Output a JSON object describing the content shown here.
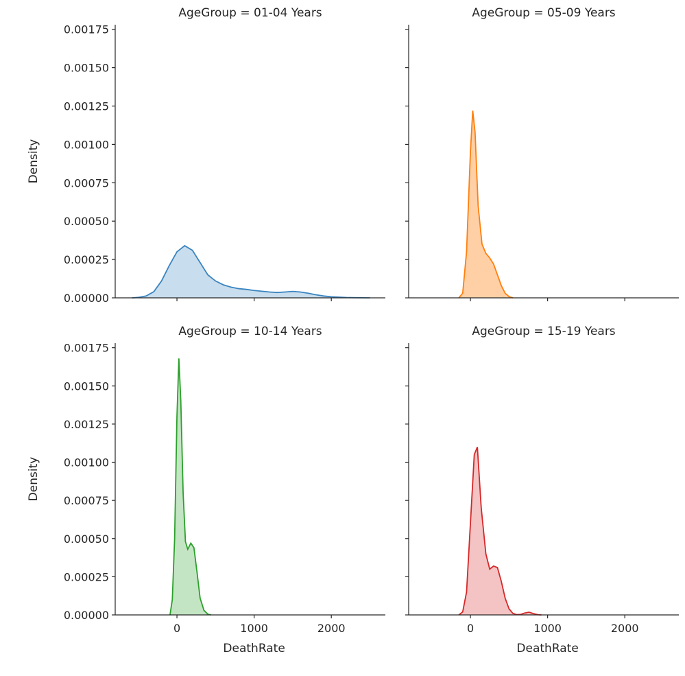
{
  "chart_data": {
    "type": "area",
    "kind": "kde-facet-grid",
    "layout": "2x2",
    "xlabel": "DeathRate",
    "ylabel": "Density",
    "xlim": [
      -800,
      2700
    ],
    "ylim": [
      0,
      0.00178
    ],
    "x_ticks": [
      0,
      1000,
      2000
    ],
    "x_tick_labels": [
      "0",
      "1000",
      "2000"
    ],
    "y_ticks": [
      0,
      0.00025,
      0.0005,
      0.00075,
      0.001,
      0.00125,
      0.0015,
      0.00175
    ],
    "y_tick_labels": [
      "0.00000",
      "0.00025",
      "0.00050",
      "0.00075",
      "0.00100",
      "0.00125",
      "0.00150",
      "0.00175"
    ],
    "grid": false,
    "panels": [
      {
        "title": "AgeGroup = 01-04 Years",
        "color": "#3a84c0",
        "fill": "#3a84c0",
        "points": [
          [
            -580,
            0
          ],
          [
            -500,
            3e-06
          ],
          [
            -400,
            1.2e-05
          ],
          [
            -300,
            4e-05
          ],
          [
            -200,
            0.00011
          ],
          [
            -100,
            0.00021
          ],
          [
            0,
            0.0003
          ],
          [
            100,
            0.00034
          ],
          [
            200,
            0.00031
          ],
          [
            300,
            0.00023
          ],
          [
            400,
            0.00015
          ],
          [
            500,
            0.00011
          ],
          [
            600,
            8.5e-05
          ],
          [
            700,
            7e-05
          ],
          [
            800,
            6e-05
          ],
          [
            900,
            5.5e-05
          ],
          [
            1000,
            4.8e-05
          ],
          [
            1100,
            4.3e-05
          ],
          [
            1200,
            3.8e-05
          ],
          [
            1300,
            3.5e-05
          ],
          [
            1400,
            3.8e-05
          ],
          [
            1500,
            4.2e-05
          ],
          [
            1600,
            3.8e-05
          ],
          [
            1700,
            3e-05
          ],
          [
            1800,
            2e-05
          ],
          [
            1900,
            1.2e-05
          ],
          [
            2000,
            7e-06
          ],
          [
            2200,
            2e-06
          ],
          [
            2400,
            5e-07
          ],
          [
            2500,
            0
          ]
        ]
      },
      {
        "title": "AgeGroup = 05-09 Years",
        "color": "#ff7f0e",
        "fill": "#ffb06a",
        "points": [
          [
            -150,
            0
          ],
          [
            -100,
            3e-05
          ],
          [
            -50,
            0.0003
          ],
          [
            0,
            0.00095
          ],
          [
            30,
            0.00122
          ],
          [
            60,
            0.00108
          ],
          [
            100,
            0.0006
          ],
          [
            150,
            0.00035
          ],
          [
            200,
            0.00029
          ],
          [
            250,
            0.00026
          ],
          [
            300,
            0.00022
          ],
          [
            350,
            0.00015
          ],
          [
            400,
            8e-05
          ],
          [
            450,
            3e-05
          ],
          [
            500,
            8e-06
          ],
          [
            550,
            0
          ]
        ]
      },
      {
        "title": "AgeGroup = 10-14 Years",
        "color": "#2ca02c",
        "fill": "#2ca02c",
        "points": [
          [
            -90,
            0
          ],
          [
            -60,
            0.0001
          ],
          [
            -30,
            0.0005
          ],
          [
            0,
            0.0013
          ],
          [
            25,
            0.00168
          ],
          [
            50,
            0.0014
          ],
          [
            80,
            0.0008
          ],
          [
            110,
            0.00048
          ],
          [
            140,
            0.00043
          ],
          [
            180,
            0.00047
          ],
          [
            220,
            0.00044
          ],
          [
            260,
            0.00028
          ],
          [
            300,
            0.00011
          ],
          [
            350,
            3e-05
          ],
          [
            400,
            5e-06
          ],
          [
            440,
            0
          ]
        ]
      },
      {
        "title": "AgeGroup = 15-19 Years",
        "color": "#d62728",
        "fill": "#d62728",
        "points": [
          [
            -150,
            0
          ],
          [
            -100,
            2e-05
          ],
          [
            -50,
            0.00015
          ],
          [
            0,
            0.0006
          ],
          [
            50,
            0.00105
          ],
          [
            90,
            0.0011
          ],
          [
            140,
            0.0007
          ],
          [
            200,
            0.0004
          ],
          [
            250,
            0.0003
          ],
          [
            300,
            0.00032
          ],
          [
            350,
            0.00031
          ],
          [
            400,
            0.00022
          ],
          [
            450,
            0.00011
          ],
          [
            500,
            4e-05
          ],
          [
            550,
            1e-05
          ],
          [
            600,
            2e-06
          ],
          [
            650,
            3e-06
          ],
          [
            700,
            1.2e-05
          ],
          [
            760,
            1.8e-05
          ],
          [
            820,
            8e-06
          ],
          [
            880,
            1e-06
          ],
          [
            920,
            0
          ]
        ]
      }
    ]
  }
}
